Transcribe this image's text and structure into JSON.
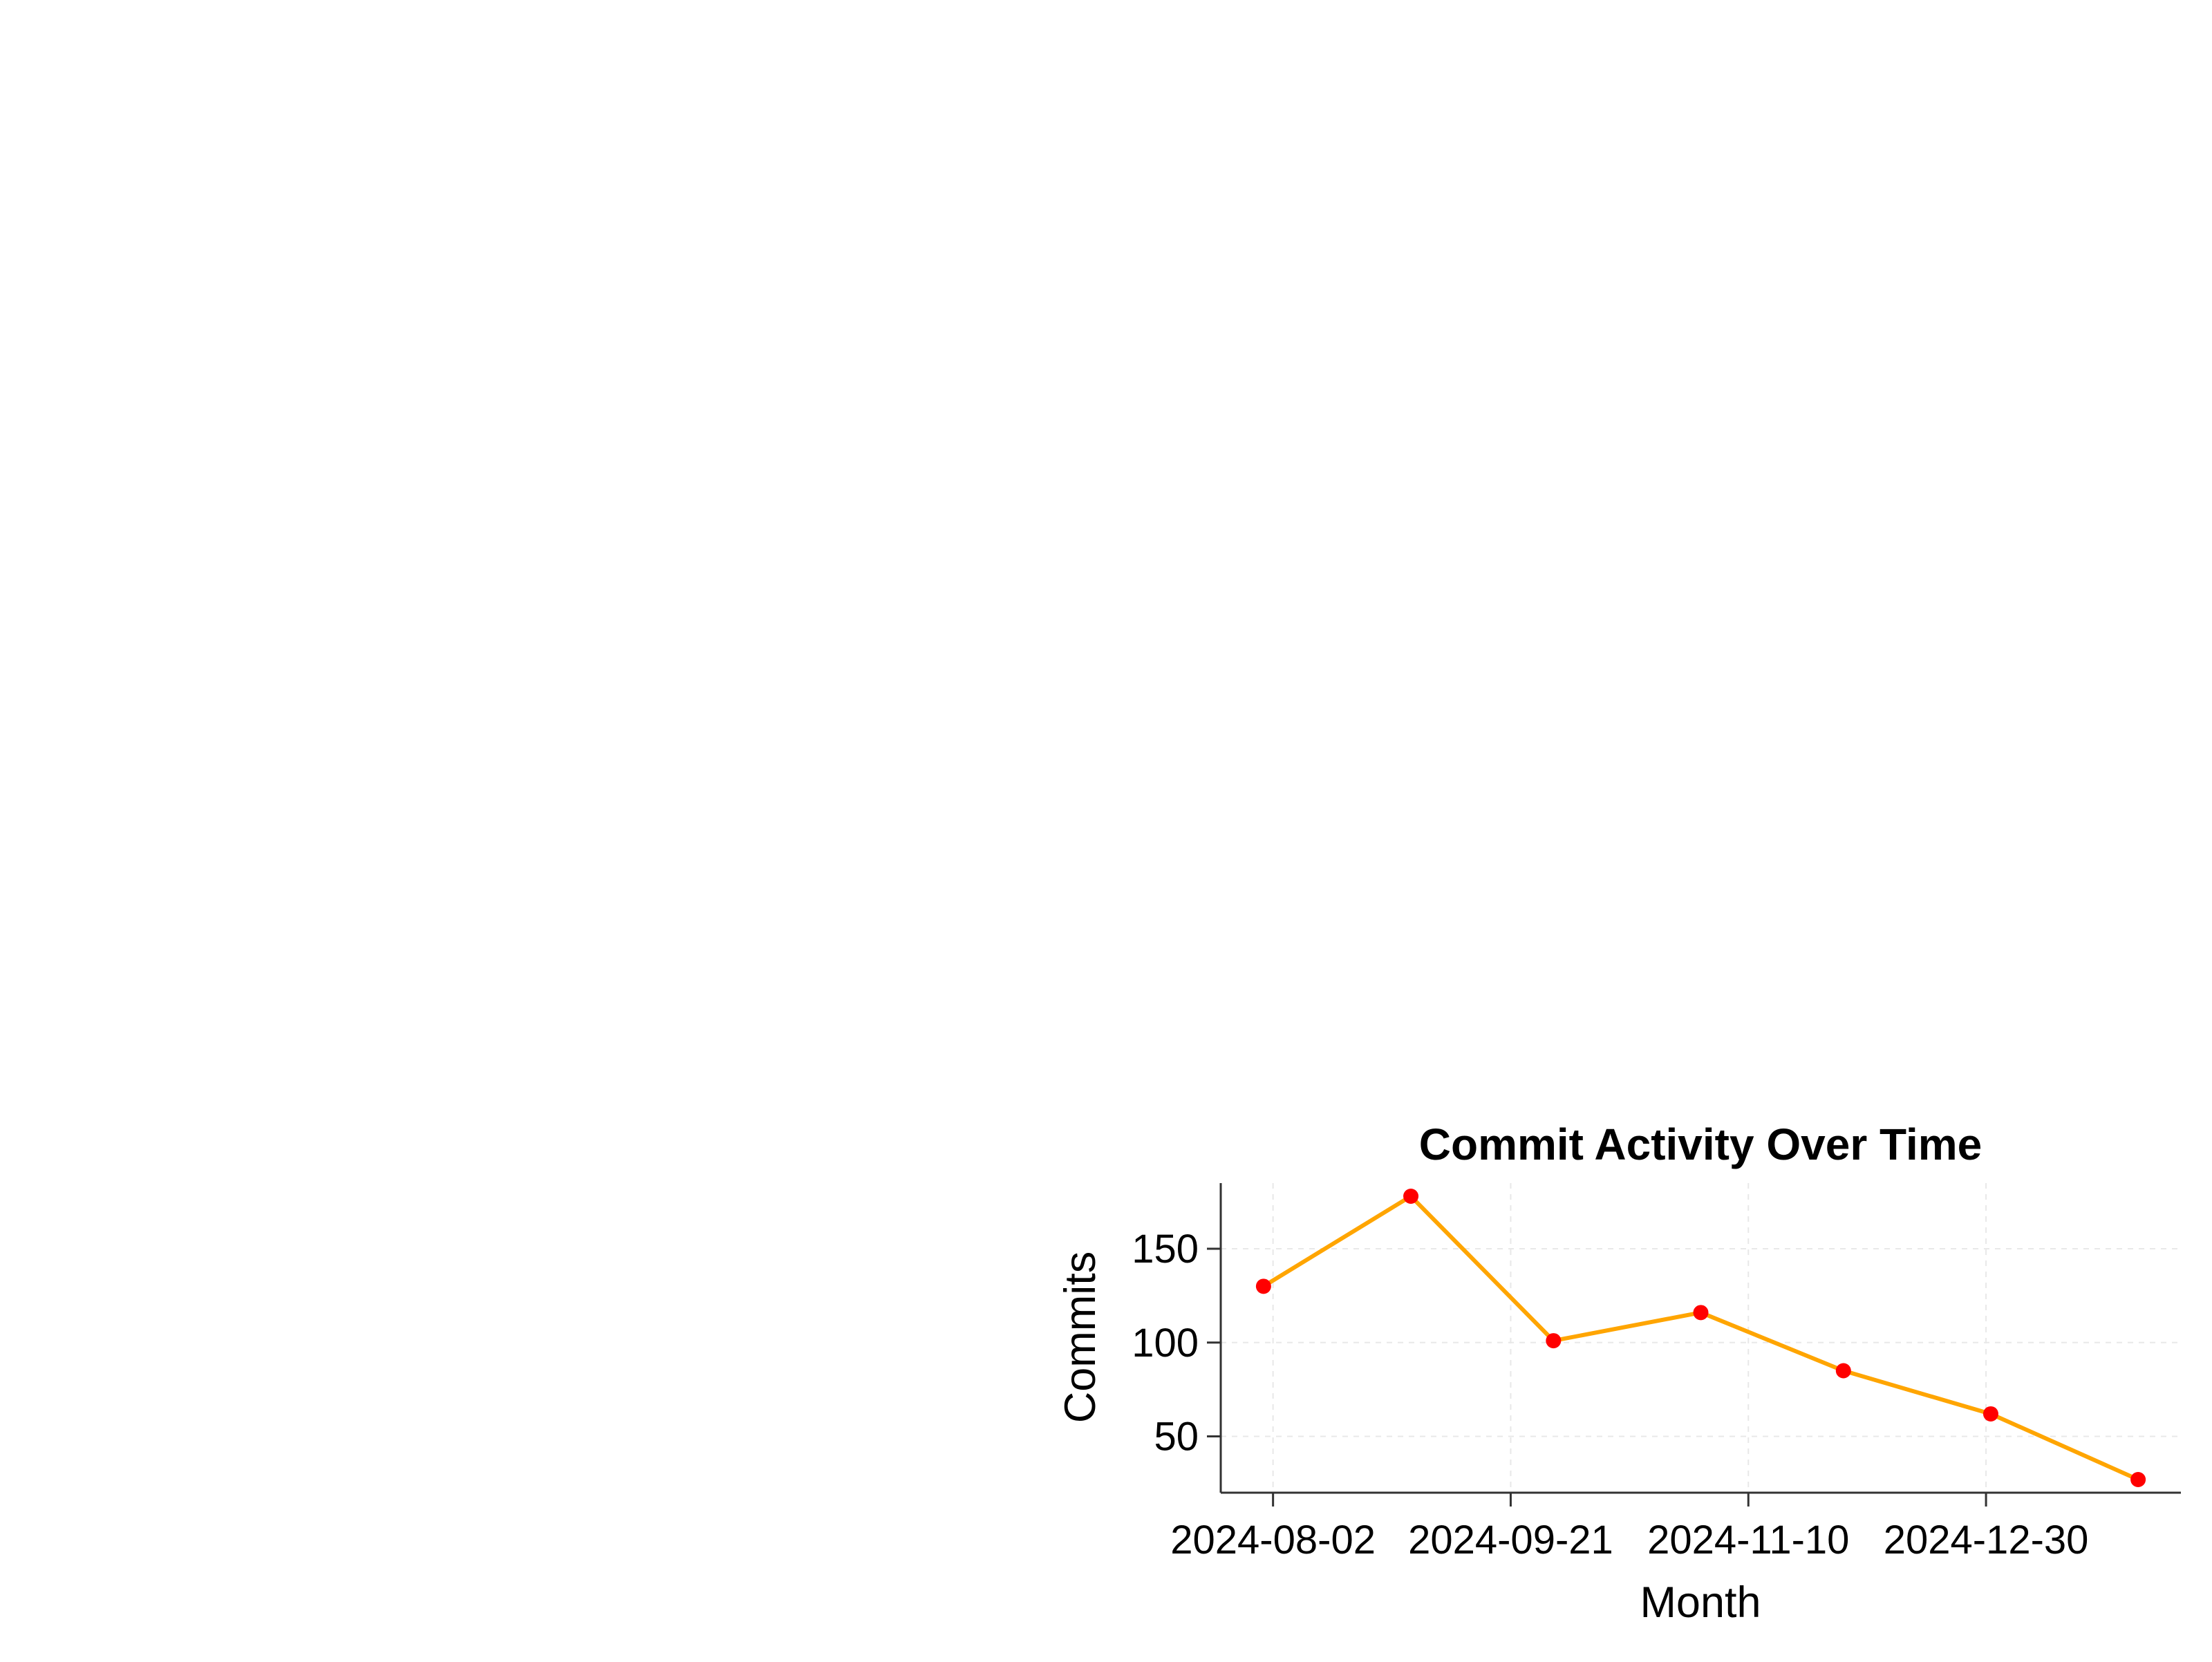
{
  "chart_data": {
    "type": "line",
    "title": "Commit Activity Over Time",
    "xlabel": "Month",
    "ylabel": "Commits",
    "x": [
      "2024-07-31",
      "2024-08-31",
      "2024-09-30",
      "2024-10-31",
      "2024-11-30",
      "2024-12-31",
      "2025-01-31"
    ],
    "series": [
      {
        "values": [
          130,
          178,
          101,
          116,
          85,
          62,
          27
        ]
      }
    ],
    "x_ticks": [
      "2024-08-02",
      "2024-09-21",
      "2024-11-10",
      "2024-12-30"
    ],
    "y_ticks": [
      50,
      100,
      150
    ],
    "xlim": [
      "2024-07-22",
      "2025-02-09"
    ],
    "ylim": [
      20,
      185
    ],
    "grid": true,
    "line_color": "#ffa500",
    "marker_color": "#ff0000",
    "axis_color": "#333333",
    "grid_color": "#e8e8e8"
  }
}
